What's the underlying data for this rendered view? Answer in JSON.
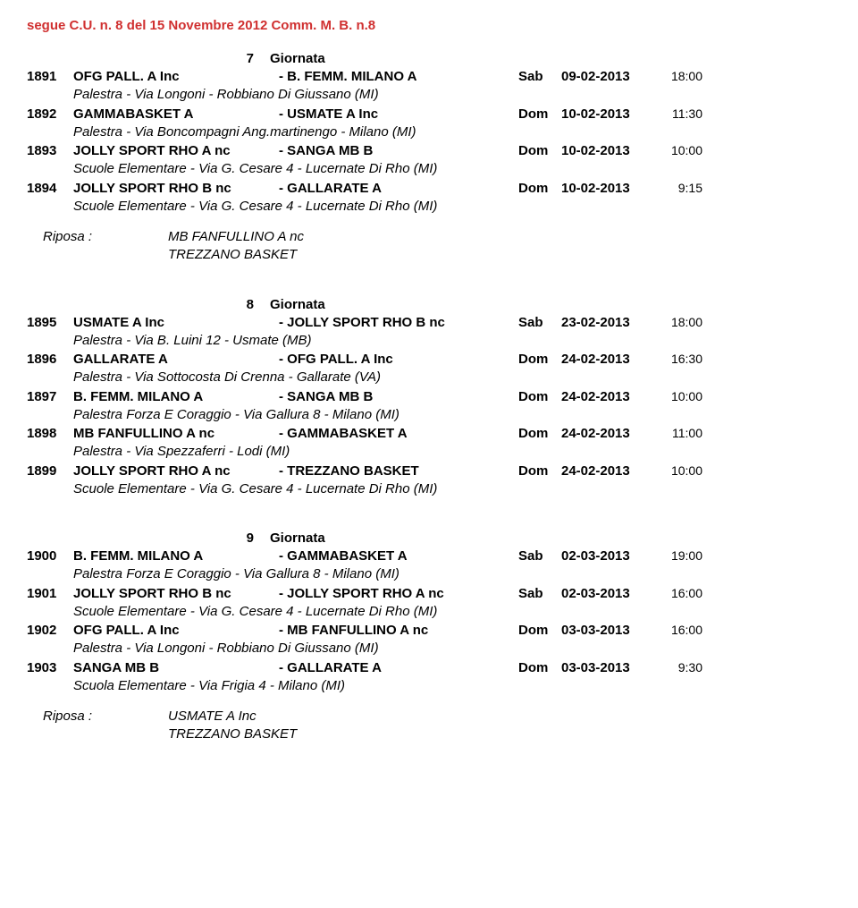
{
  "header": "segue C.U. n. 8 del 15 Novembre 2012 Comm. M. B. n.8",
  "giornata_label": "Giornata",
  "riposa_label": "Riposa :",
  "rounds": [
    {
      "num": "7",
      "matches": [
        {
          "id": "1891",
          "home": "OFG PALL. A Inc",
          "away": "- B. FEMM. MILANO A",
          "day": "Sab",
          "date": "09-02-2013",
          "time": "18:00",
          "venue": "Palestra - Via Longoni - Robbiano Di Giussano (MI)"
        },
        {
          "id": "1892",
          "home": "GAMMABASKET A",
          "away": "- USMATE A Inc",
          "day": "Dom",
          "date": "10-02-2013",
          "time": "11:30",
          "venue": "Palestra - Via Boncompagni Ang.martinengo - Milano (MI)"
        },
        {
          "id": "1893",
          "home": "JOLLY SPORT RHO A nc",
          "away": "- SANGA MB B",
          "day": "Dom",
          "date": "10-02-2013",
          "time": "10:00",
          "venue": "Scuole Elementare - Via G. Cesare 4 - Lucernate Di Rho (MI)"
        },
        {
          "id": "1894",
          "home": "JOLLY SPORT RHO B nc",
          "away": "- GALLARATE A",
          "day": "Dom",
          "date": "10-02-2013",
          "time": "9:15",
          "venue": "Scuole Elementare - Via G. Cesare 4 - Lucernate Di Rho (MI)"
        }
      ],
      "riposa": [
        "MB FANFULLINO A nc",
        "TREZZANO BASKET"
      ]
    },
    {
      "num": "8",
      "matches": [
        {
          "id": "1895",
          "home": "USMATE A Inc",
          "away": "- JOLLY SPORT RHO B nc",
          "day": "Sab",
          "date": "23-02-2013",
          "time": "18:00",
          "venue": "Palestra - Via B. Luini 12 - Usmate (MB)"
        },
        {
          "id": "1896",
          "home": "GALLARATE A",
          "away": "- OFG PALL. A Inc",
          "day": "Dom",
          "date": "24-02-2013",
          "time": "16:30",
          "venue": "Palestra - Via Sottocosta Di Crenna - Gallarate (VA)"
        },
        {
          "id": "1897",
          "home": "B. FEMM. MILANO A",
          "away": "- SANGA MB B",
          "day": "Dom",
          "date": "24-02-2013",
          "time": "10:00",
          "venue": "Palestra Forza E Coraggio - Via Gallura 8 - Milano (MI)"
        },
        {
          "id": "1898",
          "home": "MB FANFULLINO A nc",
          "away": "- GAMMABASKET A",
          "day": "Dom",
          "date": "24-02-2013",
          "time": "11:00",
          "venue": "Palestra - Via Spezzaferri - Lodi (MI)"
        },
        {
          "id": "1899",
          "home": "JOLLY SPORT RHO A nc",
          "away": "- TREZZANO BASKET",
          "day": "Dom",
          "date": "24-02-2013",
          "time": "10:00",
          "venue": "Scuole Elementare - Via G. Cesare 4 - Lucernate Di Rho (MI)"
        }
      ],
      "riposa": []
    },
    {
      "num": "9",
      "matches": [
        {
          "id": "1900",
          "home": "B. FEMM. MILANO A",
          "away": "- GAMMABASKET A",
          "day": "Sab",
          "date": "02-03-2013",
          "time": "19:00",
          "venue": "Palestra Forza E Coraggio - Via Gallura 8 - Milano (MI)"
        },
        {
          "id": "1901",
          "home": "JOLLY SPORT RHO B nc",
          "away": "- JOLLY SPORT RHO A nc",
          "day": "Sab",
          "date": "02-03-2013",
          "time": "16:00",
          "venue": "Scuole Elementare - Via G. Cesare 4 - Lucernate Di Rho (MI)"
        },
        {
          "id": "1902",
          "home": "OFG PALL. A Inc",
          "away": "- MB FANFULLINO A nc",
          "day": "Dom",
          "date": "03-03-2013",
          "time": "16:00",
          "venue": "Palestra - Via Longoni - Robbiano Di Giussano (MI)"
        },
        {
          "id": "1903",
          "home": "SANGA MB B",
          "away": "- GALLARATE A",
          "day": "Dom",
          "date": "03-03-2013",
          "time": "9:30",
          "venue": "Scuola Elementare - Via Frigia 4 - Milano (MI)"
        }
      ],
      "riposa": [
        "USMATE A Inc",
        "TREZZANO BASKET"
      ]
    }
  ]
}
